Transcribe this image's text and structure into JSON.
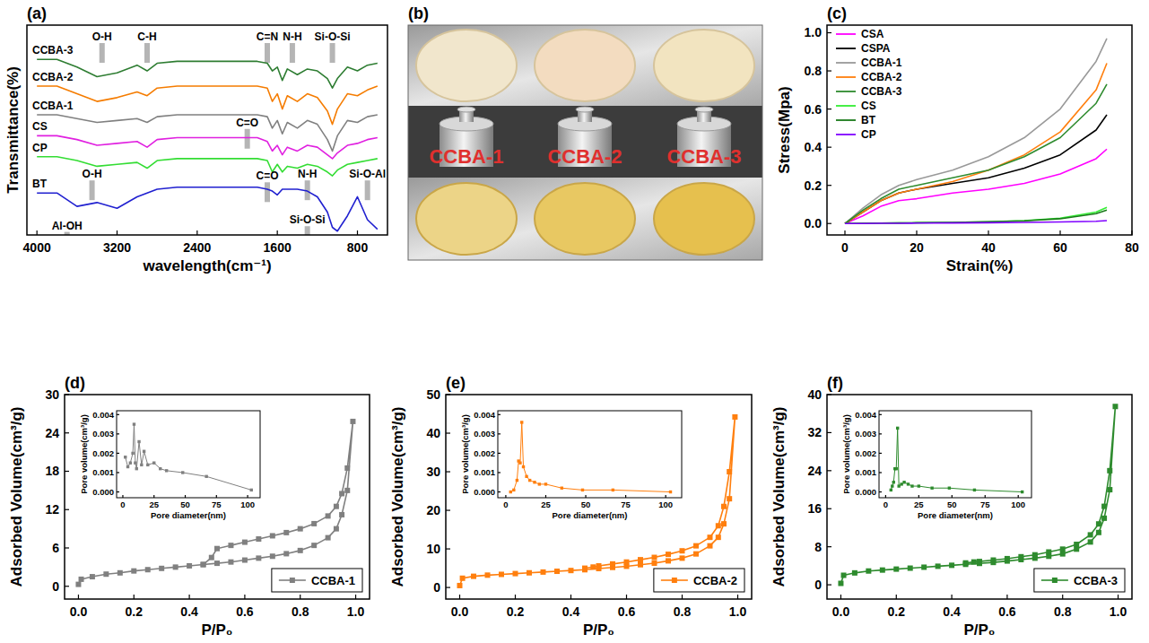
{
  "chart_data": [
    {
      "type": "line",
      "panel": "(a)",
      "xlabel": "wavelength(cm⁻¹)",
      "ylabel": "Transmittance(%)",
      "xlim": [
        4100,
        500
      ],
      "ylim": [
        0,
        110
      ],
      "xticks": [
        4000,
        3200,
        2400,
        1600,
        800
      ],
      "tick_labels": "x",
      "x": [
        4000,
        3800,
        3600,
        3400,
        3200,
        3000,
        2900,
        2800,
        2600,
        2400,
        2200,
        2000,
        1800,
        1700,
        1650,
        1600,
        1550,
        1500,
        1400,
        1300,
        1200,
        1100,
        1050,
        1000,
        900,
        800,
        700,
        600
      ],
      "series": [
        {
          "name": "CCBA-3",
          "color": "#2e7d32",
          "values": [
            92,
            92,
            88,
            83,
            85,
            89,
            86,
            90,
            91,
            91,
            91,
            91,
            91,
            90,
            86,
            88,
            81,
            87,
            84,
            87,
            86,
            82,
            77,
            82,
            88,
            86,
            89,
            90
          ]
        },
        {
          "name": "CCBA-2",
          "color": "#f57c00",
          "values": [
            78,
            78,
            74,
            70,
            72,
            75,
            73,
            77,
            78,
            78,
            78,
            78,
            78,
            77,
            70,
            74,
            66,
            73,
            70,
            74,
            72,
            65,
            58,
            66,
            74,
            73,
            76,
            78
          ]
        },
        {
          "name": "CCBA-1",
          "color": "#808080",
          "values": [
            63,
            63,
            61,
            59,
            60,
            61,
            59,
            62,
            63,
            63,
            63,
            63,
            63,
            62,
            56,
            60,
            53,
            59,
            56,
            60,
            58,
            50,
            44,
            52,
            60,
            59,
            62,
            63
          ]
        },
        {
          "name": "CS",
          "color": "#e020e0",
          "values": [
            52,
            52,
            50,
            47,
            48,
            49,
            46,
            50,
            51,
            51,
            51,
            51,
            51,
            49,
            44,
            47,
            42,
            46,
            44,
            47,
            46,
            42,
            40,
            43,
            47,
            48,
            50,
            51
          ]
        },
        {
          "name": "CP",
          "color": "#33dd33",
          "values": [
            41,
            41,
            39,
            36,
            37,
            38,
            35,
            39,
            40,
            40,
            40,
            40,
            40,
            39,
            33,
            37,
            33,
            36,
            35,
            37,
            36,
            33,
            31,
            34,
            37,
            38,
            39,
            40
          ]
        },
        {
          "name": "BT",
          "color": "#2020d0",
          "values": [
            22,
            22,
            15,
            17,
            14,
            20,
            22,
            24,
            25,
            25,
            25,
            25,
            25,
            24,
            23,
            21,
            24,
            24,
            24,
            23,
            20,
            12,
            4,
            2,
            10,
            20,
            8,
            3
          ]
        }
      ],
      "annotations": [
        {
          "text": "O-H",
          "x": 3350,
          "y": 102
        },
        {
          "text": "C-H",
          "x": 2900,
          "y": 102
        },
        {
          "text": "C=N",
          "x": 1700,
          "y": 102
        },
        {
          "text": "N-H",
          "x": 1450,
          "y": 102
        },
        {
          "text": "Si-O-Si",
          "x": 1050,
          "y": 102
        },
        {
          "text": "C=O",
          "x": 1900,
          "y": 57
        },
        {
          "text": "N-H",
          "x": 1300,
          "y": 30
        },
        {
          "text": "C=O",
          "x": 1700,
          "y": 29
        },
        {
          "text": "O-H",
          "x": 3450,
          "y": 30
        },
        {
          "text": "Al-OH",
          "x": 3700,
          "y": 3
        },
        {
          "text": "Si-O-Si",
          "x": 1300,
          "y": 6
        },
        {
          "text": "Si-O-Al",
          "x": 700,
          "y": 30
        }
      ]
    },
    {
      "type": "line",
      "panel": "(c)",
      "xlabel": "Strain(%)",
      "ylabel": "Stress(Mpa)",
      "xlim": [
        -5,
        80
      ],
      "ylim": [
        -0.06,
        1.04
      ],
      "xticks": [
        0,
        20,
        40,
        60,
        80
      ],
      "yticks": [
        {
          "value": 0,
          "label": "0.0"
        },
        {
          "value": 0.2,
          "label": "0.2"
        },
        {
          "value": 0.4,
          "label": "0.4"
        },
        {
          "value": 0.6,
          "label": "0.6"
        },
        {
          "value": 0.8,
          "label": "0.8"
        },
        {
          "value": 1,
          "label": "1.0"
        }
      ],
      "legend": "upper left",
      "x": [
        0,
        5,
        10,
        15,
        20,
        30,
        40,
        50,
        60,
        70,
        73
      ],
      "series": [
        {
          "name": "CSA",
          "color": "#ff00ff",
          "values": [
            0,
            0.04,
            0.09,
            0.12,
            0.13,
            0.16,
            0.18,
            0.21,
            0.26,
            0.34,
            0.39
          ]
        },
        {
          "name": "CSPA",
          "color": "#000000",
          "values": [
            0,
            0.06,
            0.12,
            0.16,
            0.18,
            0.21,
            0.24,
            0.29,
            0.36,
            0.49,
            0.57
          ]
        },
        {
          "name": "CCBA-1",
          "color": "#999999",
          "values": [
            0,
            0.08,
            0.15,
            0.2,
            0.23,
            0.28,
            0.35,
            0.45,
            0.6,
            0.85,
            0.97
          ]
        },
        {
          "name": "CCBA-2",
          "color": "#ff7f0e",
          "values": [
            0,
            0.06,
            0.12,
            0.16,
            0.18,
            0.22,
            0.28,
            0.36,
            0.48,
            0.7,
            0.84
          ]
        },
        {
          "name": "CCBA-3",
          "color": "#2e8b2e",
          "values": [
            0,
            0.07,
            0.13,
            0.18,
            0.2,
            0.24,
            0.28,
            0.35,
            0.45,
            0.63,
            0.73
          ]
        },
        {
          "name": "CS",
          "color": "#33ee33",
          "values": [
            0,
            0.001,
            0.002,
            0.003,
            0.004,
            0.006,
            0.009,
            0.015,
            0.028,
            0.06,
            0.085
          ]
        },
        {
          "name": "BT",
          "color": "#1a7a1a",
          "values": [
            0,
            0.001,
            0.002,
            0.003,
            0.004,
            0.006,
            0.009,
            0.014,
            0.025,
            0.052,
            0.07
          ]
        },
        {
          "name": "CP",
          "color": "#7f00ff",
          "values": [
            0,
            0,
            0.001,
            0.001,
            0.002,
            0.003,
            0.004,
            0.006,
            0.008,
            0.012,
            0.015
          ]
        }
      ]
    },
    {
      "type": "line",
      "panel": "(d)",
      "xlabel": "P/P₀",
      "ylabel": "Adsorbed Volume(cm³/g)",
      "xlim": [
        -0.05,
        1.05
      ],
      "ylim": [
        -2,
        30
      ],
      "xticks": [
        {
          "value": 0,
          "label": "0.0"
        },
        {
          "value": 0.2,
          "label": "0.2"
        },
        {
          "value": 0.4,
          "label": "0.4"
        },
        {
          "value": 0.6,
          "label": "0.6"
        },
        {
          "value": 0.8,
          "label": "0.8"
        },
        {
          "value": 1,
          "label": "1.0"
        }
      ],
      "yticks": [
        0,
        6,
        12,
        18,
        24,
        30
      ],
      "legend": "lower right",
      "x": [
        0,
        0.01,
        0.05,
        0.1,
        0.15,
        0.2,
        0.25,
        0.3,
        0.35,
        0.4,
        0.45,
        0.5,
        0.55,
        0.6,
        0.65,
        0.7,
        0.75,
        0.8,
        0.85,
        0.9,
        0.93,
        0.95,
        0.97,
        0.99,
        0.97,
        0.95,
        0.93,
        0.9,
        0.85,
        0.8,
        0.75,
        0.7,
        0.65,
        0.6,
        0.55,
        0.5,
        0.48,
        0.45
      ],
      "series": [
        {
          "name": "CCBA-1",
          "color": "#808080",
          "marker": "square",
          "line_style": "solid",
          "values": [
            0.3,
            1.1,
            1.5,
            1.9,
            2.1,
            2.4,
            2.6,
            2.8,
            3.0,
            3.2,
            3.4,
            3.6,
            3.8,
            4.1,
            4.4,
            4.7,
            5.1,
            5.6,
            6.4,
            7.6,
            9.0,
            11.2,
            15,
            25.8,
            18.5,
            14.5,
            12.5,
            11.0,
            9.8,
            9.0,
            8.4,
            7.9,
            7.4,
            6.9,
            6.4,
            5.9,
            4.5,
            3.4
          ]
        }
      ]
    },
    {
      "type": "line",
      "xlabel": "Pore diameter(nm)",
      "ylabel": "Pore volume(cm³/g)",
      "xlim": [
        -5,
        110
      ],
      "ylim": [
        -0.0003,
        0.0042
      ],
      "xticks": [
        0,
        25,
        50,
        75,
        100
      ],
      "yticks": [
        {
          "value": 0,
          "label": "0.000"
        },
        {
          "value": 0.001,
          "label": "0.001"
        },
        {
          "value": 0.002,
          "label": "0.002"
        },
        {
          "value": 0.003,
          "label": "0.003"
        },
        {
          "value": 0.004,
          "label": "0.004"
        }
      ],
      "x": [
        2,
        4,
        6,
        8,
        9,
        10,
        11,
        13,
        15,
        17,
        20,
        25,
        30,
        35,
        48,
        67,
        103
      ],
      "series": [
        {
          "name": "CCBA-1",
          "color": "#808080",
          "marker": "square",
          "line_style": "solid",
          "values": [
            0.0018,
            0.0013,
            0.0015,
            0.002,
            0.0035,
            0.0015,
            0.0012,
            0.0026,
            0.0014,
            0.0021,
            0.0014,
            0.0015,
            0.0012,
            0.0011,
            0.001,
            0.0008,
            0.0001
          ]
        }
      ]
    },
    {
      "type": "line",
      "panel": "(e)",
      "xlabel": "P/P₀",
      "ylabel": "Adsorbed Volume(cm³/g)",
      "xlim": [
        -0.05,
        1.05
      ],
      "ylim": [
        -3,
        50
      ],
      "xticks": [
        {
          "value": 0,
          "label": "0.0"
        },
        {
          "value": 0.2,
          "label": "0.2"
        },
        {
          "value": 0.4,
          "label": "0.4"
        },
        {
          "value": 0.6,
          "label": "0.6"
        },
        {
          "value": 0.8,
          "label": "0.8"
        },
        {
          "value": 1,
          "label": "1.0"
        }
      ],
      "yticks": [
        0,
        10,
        20,
        30,
        40,
        50
      ],
      "legend": "lower right",
      "x": [
        0,
        0.01,
        0.05,
        0.1,
        0.15,
        0.2,
        0.25,
        0.3,
        0.35,
        0.4,
        0.45,
        0.5,
        0.55,
        0.6,
        0.65,
        0.7,
        0.75,
        0.8,
        0.85,
        0.9,
        0.93,
        0.95,
        0.97,
        0.99,
        0.97,
        0.95,
        0.93,
        0.9,
        0.85,
        0.8,
        0.75,
        0.7,
        0.65,
        0.6,
        0.55,
        0.5,
        0.48,
        0.45
      ],
      "series": [
        {
          "name": "CCBA-2",
          "color": "#ff7f0e",
          "marker": "square",
          "line_style": "solid",
          "values": [
            0.5,
            2.4,
            2.9,
            3.2,
            3.4,
            3.6,
            3.8,
            4.0,
            4.2,
            4.4,
            4.6,
            4.9,
            5.2,
            5.5,
            5.9,
            6.3,
            6.9,
            7.6,
            8.7,
            10.8,
            13,
            16.5,
            23,
            44.2,
            30,
            21,
            16,
            13,
            10.8,
            9.5,
            8.6,
            7.8,
            7.2,
            6.6,
            6.1,
            5.6,
            5.3,
            5.0
          ]
        }
      ]
    },
    {
      "type": "line",
      "xlabel": "Pore diameter(nm)",
      "ylabel": "Pore volume(cm³/g)",
      "xlim": [
        -5,
        110
      ],
      "ylim": [
        -0.0003,
        0.0042
      ],
      "xticks": [
        0,
        25,
        50,
        75,
        100
      ],
      "yticks": [
        {
          "value": 0,
          "label": "0.000"
        },
        {
          "value": 0.001,
          "label": "0.001"
        },
        {
          "value": 0.002,
          "label": "0.002"
        },
        {
          "value": 0.003,
          "label": "0.003"
        },
        {
          "value": 0.004,
          "label": "0.004"
        }
      ],
      "x": [
        3,
        5,
        7,
        8,
        9,
        10,
        11,
        13,
        15,
        18,
        21,
        25,
        35,
        48,
        67,
        103
      ],
      "series": [
        {
          "name": "CCBA-2",
          "color": "#ff7f0e",
          "marker": "square",
          "line_style": "solid",
          "values": [
            0,
            0.0001,
            0.0006,
            0.0016,
            0.0015,
            0.0036,
            0.0013,
            0.0008,
            0.0006,
            0.0005,
            0.0004,
            0.0004,
            0.0002,
            0.0001,
            0.0001,
            0
          ]
        }
      ]
    },
    {
      "type": "line",
      "panel": "(f)",
      "xlabel": "P/P₀",
      "ylabel": "Adsorbed Volume(cm³/g)",
      "xlim": [
        -0.05,
        1.05
      ],
      "ylim": [
        -3,
        40
      ],
      "xticks": [
        {
          "value": 0,
          "label": "0.0"
        },
        {
          "value": 0.2,
          "label": "0.2"
        },
        {
          "value": 0.4,
          "label": "0.4"
        },
        {
          "value": 0.6,
          "label": "0.6"
        },
        {
          "value": 0.8,
          "label": "0.8"
        },
        {
          "value": 1,
          "label": "1.0"
        }
      ],
      "yticks": [
        0,
        8,
        16,
        24,
        32,
        40
      ],
      "legend": "lower right",
      "x": [
        0,
        0.01,
        0.05,
        0.1,
        0.15,
        0.2,
        0.25,
        0.3,
        0.35,
        0.4,
        0.45,
        0.5,
        0.55,
        0.6,
        0.65,
        0.7,
        0.75,
        0.8,
        0.85,
        0.9,
        0.93,
        0.95,
        0.97,
        0.99,
        0.97,
        0.95,
        0.93,
        0.9,
        0.85,
        0.8,
        0.75,
        0.7,
        0.65,
        0.6,
        0.55,
        0.5,
        0.48,
        0.45
      ],
      "series": [
        {
          "name": "CCBA-3",
          "color": "#2e8b2e",
          "marker": "square",
          "line_style": "solid",
          "values": [
            0.3,
            2.0,
            2.5,
            2.9,
            3.1,
            3.3,
            3.5,
            3.7,
            3.9,
            4.1,
            4.3,
            4.5,
            4.7,
            5.0,
            5.3,
            5.6,
            6.0,
            6.5,
            7.5,
            9.0,
            11,
            14,
            20,
            37.5,
            24,
            16.5,
            12.8,
            10.5,
            8.5,
            7.5,
            6.9,
            6.3,
            5.9,
            5.5,
            5.2,
            4.9,
            4.8,
            4.6
          ]
        }
      ]
    },
    {
      "type": "line",
      "xlabel": "Pore diameter(nm)",
      "ylabel": "Pore volume(cm³/g)",
      "xlim": [
        -5,
        110
      ],
      "ylim": [
        -0.0003,
        0.0042
      ],
      "xticks": [
        0,
        25,
        50,
        75,
        100
      ],
      "yticks": [
        {
          "value": 0,
          "label": "0.000"
        },
        {
          "value": 0.001,
          "label": "0.001"
        },
        {
          "value": 0.002,
          "label": "0.002"
        },
        {
          "value": 0.003,
          "label": "0.003"
        },
        {
          "value": 0.004,
          "label": "0.004"
        }
      ],
      "x": [
        4,
        5,
        6,
        7,
        8,
        9,
        10,
        12,
        14,
        17,
        20,
        25,
        35,
        48,
        67,
        103
      ],
      "series": [
        {
          "name": "CCBA-3",
          "color": "#2e8b2e",
          "marker": "square",
          "line_style": "solid",
          "values": [
            0.0001,
            0.0003,
            0.0005,
            0.0012,
            0.0012,
            0.0033,
            0.0003,
            0.0004,
            0.0005,
            0.0004,
            0.0003,
            0.0003,
            0.0002,
            0.0002,
            0.0001,
            0
          ]
        }
      ]
    }
  ],
  "photo": {
    "panel": "(b)",
    "labels": [
      "CCBA-1",
      "CCBA-2",
      "CCBA-3"
    ]
  }
}
